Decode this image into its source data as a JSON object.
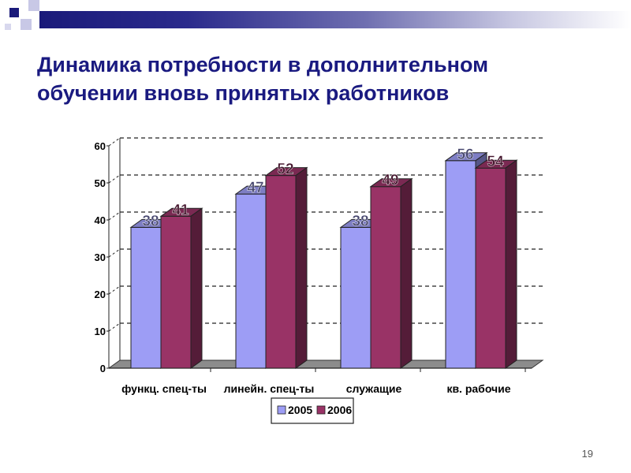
{
  "slide": {
    "title_line1": "Динамика потребности в дополнительном",
    "title_line2": "обучении вновь принятых работников",
    "slide_number": "19"
  },
  "colors": {
    "header_dark": "#1a1a7a",
    "title": "#1a1a80",
    "series_2005": "#9d9df5",
    "series_2006": "#993366"
  },
  "chart_data": {
    "type": "bar",
    "title": "",
    "xlabel": "",
    "ylabel": "",
    "ylim": [
      0,
      60
    ],
    "yticks": [
      0,
      10,
      20,
      30,
      40,
      50,
      60
    ],
    "categories": [
      "функц. спец-ты",
      "линейн. спец-ты",
      "служащие",
      "кв. рабочие"
    ],
    "series": [
      {
        "name": "2005",
        "color": "#9d9df5",
        "values": [
          38,
          47,
          38,
          56
        ]
      },
      {
        "name": "2006",
        "color": "#993366",
        "values": [
          41,
          52,
          49,
          54
        ]
      }
    ],
    "grid": true,
    "legend_position": "bottom"
  }
}
